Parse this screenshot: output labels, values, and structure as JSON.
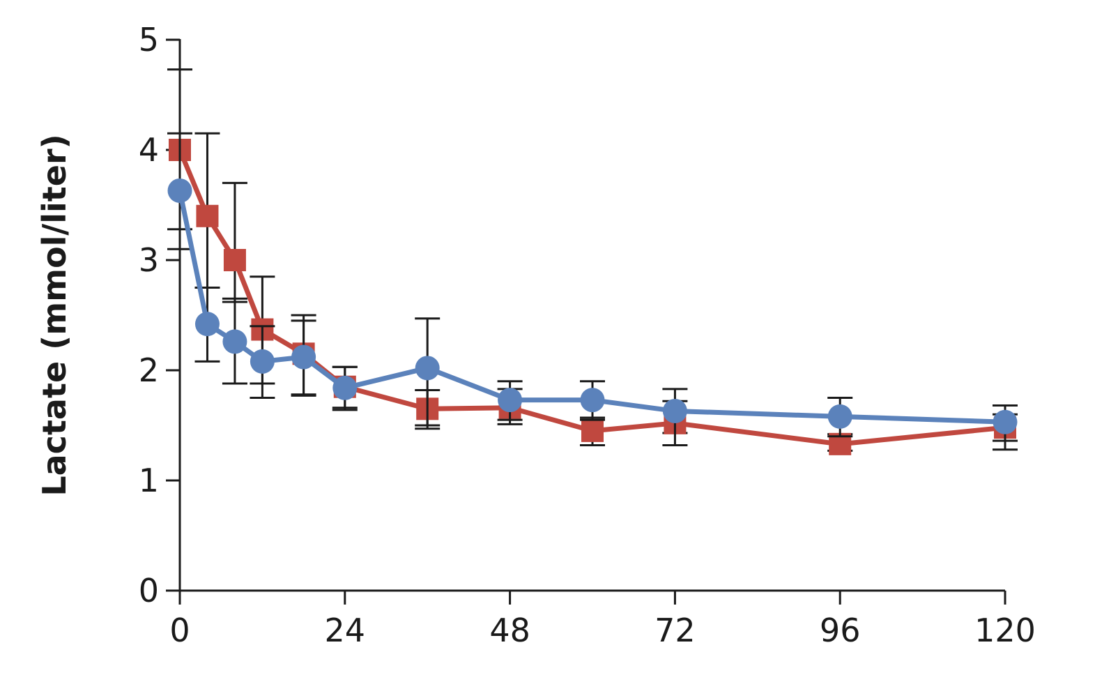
{
  "chart_data": {
    "type": "line",
    "title": "",
    "xlabel": "",
    "ylabel": "Lactate (mmol/liter)",
    "xlim": [
      0,
      120
    ],
    "ylim": [
      0,
      5
    ],
    "xticks": [
      0,
      24,
      48,
      72,
      96,
      120
    ],
    "yticks": [
      0,
      1,
      2,
      3,
      4,
      5
    ],
    "grid": false,
    "error_bars": true,
    "series": [
      {
        "color": "#c0483f",
        "marker": "square",
        "x": [
          0,
          4,
          8,
          12,
          18,
          24,
          36,
          48,
          60,
          72,
          96,
          120
        ],
        "y": [
          4.0,
          3.4,
          3.0,
          2.37,
          2.15,
          1.85,
          1.65,
          1.66,
          1.45,
          1.52,
          1.33,
          1.48
        ],
        "err_low": [
          3.28,
          2.75,
          2.62,
          1.88,
          1.77,
          1.64,
          1.47,
          1.51,
          1.32,
          1.43,
          1.27,
          1.36
        ],
        "err_high": [
          4.15,
          4.15,
          3.7,
          2.85,
          2.5,
          2.03,
          1.82,
          1.83,
          1.57,
          1.72,
          1.42,
          1.6
        ]
      },
      {
        "color": "#5b82bb",
        "marker": "circle",
        "x": [
          0,
          4,
          8,
          12,
          18,
          24,
          36,
          48,
          60,
          72,
          96,
          120
        ],
        "y": [
          3.63,
          2.42,
          2.26,
          2.08,
          2.12,
          1.84,
          2.02,
          1.73,
          1.73,
          1.63,
          1.58,
          1.53
        ],
        "err_low": [
          3.1,
          2.08,
          1.88,
          1.75,
          1.78,
          1.66,
          1.5,
          1.55,
          1.55,
          1.32,
          1.4,
          1.28
        ],
        "err_high": [
          4.73,
          2.75,
          2.65,
          2.4,
          2.45,
          2.03,
          2.47,
          1.9,
          1.9,
          1.83,
          1.75,
          1.68
        ]
      }
    ]
  }
}
